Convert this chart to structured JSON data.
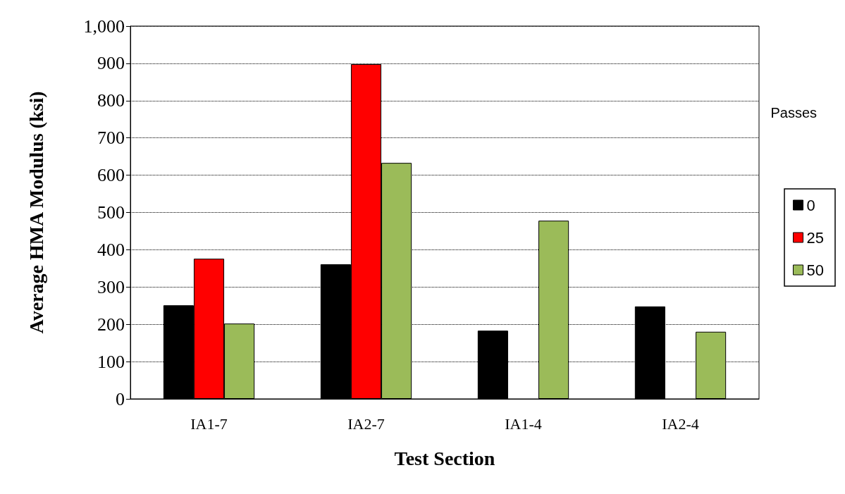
{
  "chart_data": {
    "type": "bar",
    "xlabel": "Test Section",
    "ylabel": "Average HMA Modulus (ksi)",
    "legend_title": "Passes",
    "categories": [
      "IA1-7",
      "IA2-7",
      "IA1-4",
      "IA2-4"
    ],
    "series": [
      {
        "name": "0",
        "color": "#000000",
        "values": [
          251,
          361,
          183,
          248
        ]
      },
      {
        "name": "25",
        "color": "#ff0000",
        "values": [
          376,
          898,
          null,
          null
        ]
      },
      {
        "name": "50",
        "color": "#9bbb59",
        "values": [
          202,
          633,
          478,
          180
        ]
      }
    ],
    "ylim": [
      0,
      1000
    ],
    "yticks": [
      0,
      100,
      200,
      300,
      400,
      500,
      600,
      700,
      800,
      900,
      {
        "value": 1000,
        "label": "1,000"
      }
    ],
    "grid": "y",
    "legend": "right"
  }
}
